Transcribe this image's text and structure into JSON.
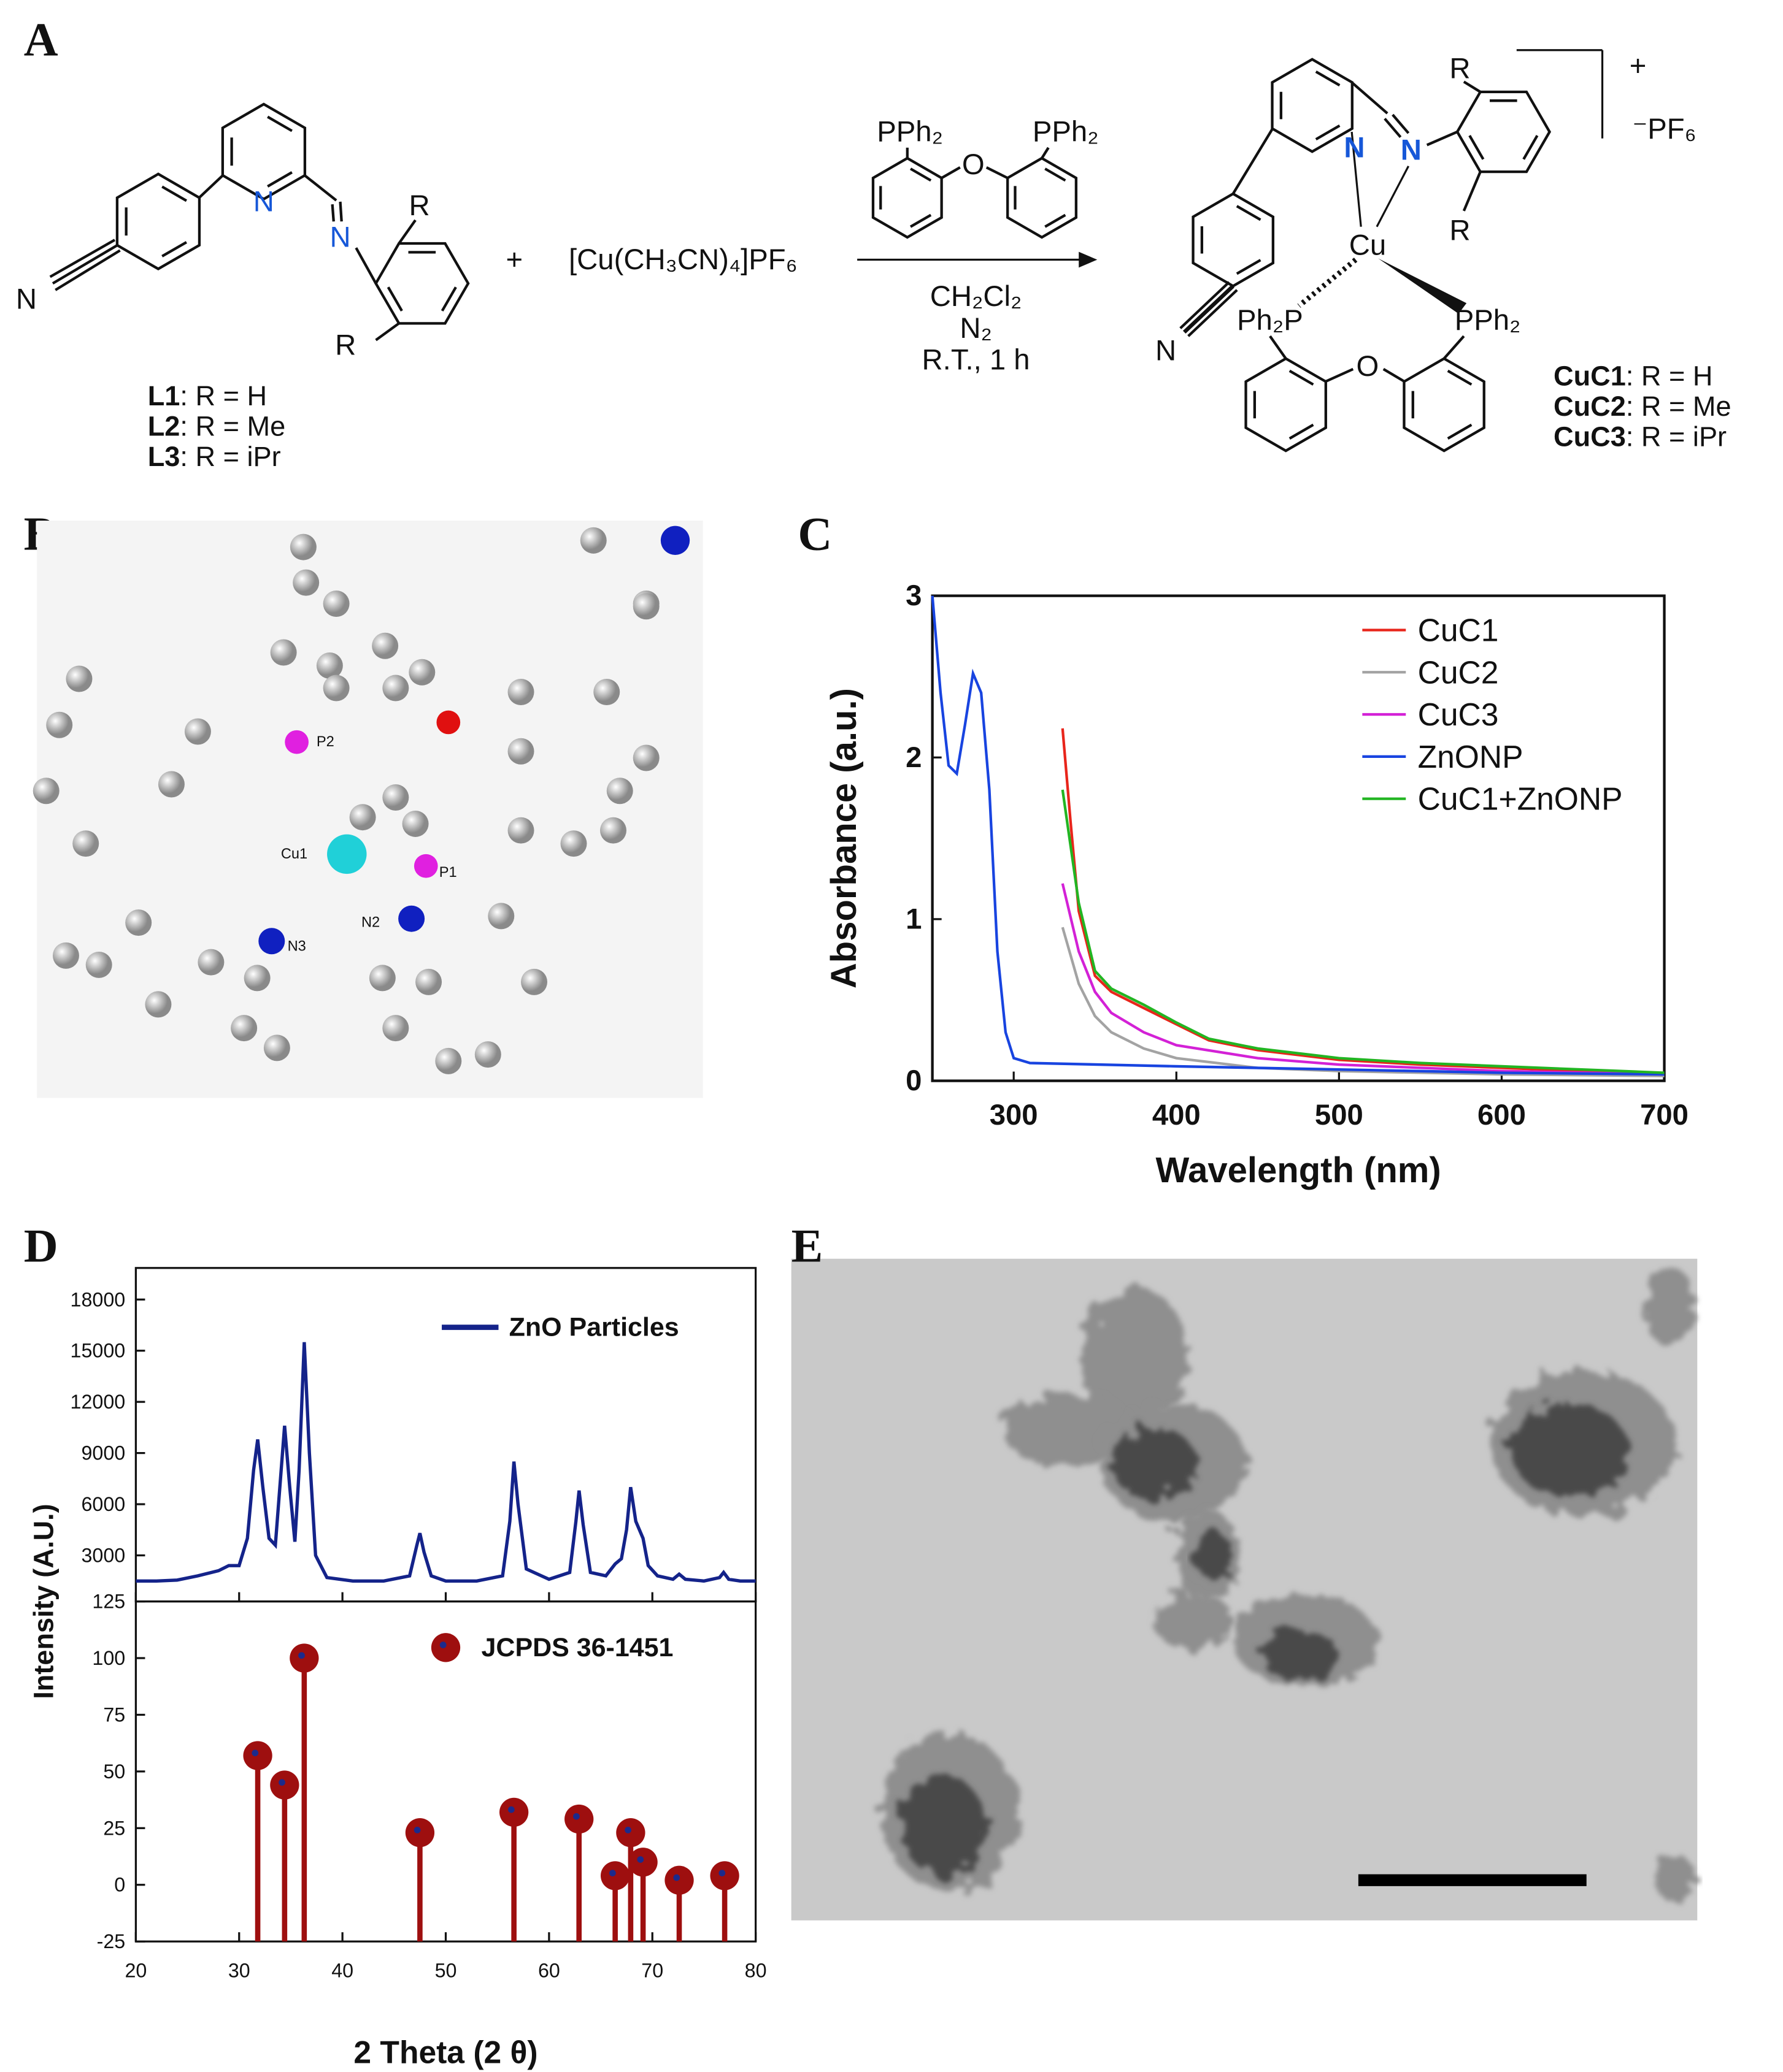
{
  "panel_labels": [
    "A",
    "B",
    "C",
    "D",
    "E"
  ],
  "scheme": {
    "ligand_atoms": [
      "N",
      "N",
      "R",
      "R",
      "N"
    ],
    "ligand_labels": [
      [
        "L1",
        ": R = H"
      ],
      [
        "L2",
        ": R = Me"
      ],
      [
        "L3",
        ": R = iPr"
      ]
    ],
    "plus": "+",
    "copper_salt": "[Cu(CH₃CN)₄]PF₆",
    "reagent_atoms": [
      "PPh₂",
      "PPh₂",
      "O"
    ],
    "conditions": [
      "CH₂Cl₂",
      "N₂",
      "R.T., 1 h"
    ],
    "product_atoms": [
      "N",
      "N",
      "Cu",
      "R",
      "R",
      "N",
      "Ph₂P",
      "PPh₂",
      "O"
    ],
    "charge": "+",
    "counterion": "⁻PF₆",
    "product_labels": [
      [
        "CuC1",
        ": R = H"
      ],
      [
        "CuC2",
        ": R = Me"
      ],
      [
        "CuC3",
        ": R = iPr"
      ]
    ]
  },
  "structure": {
    "atom_labels": [
      "P2",
      "Cu1",
      "P1",
      "N2",
      "N3"
    ]
  },
  "chart_data": [
    {
      "type": "line",
      "xlabel": "Wavelength (nm)",
      "ylabel": "Absorbance (a.u.)",
      "xlim": [
        250,
        700
      ],
      "ylim": [
        0,
        3
      ],
      "xticks": [
        300,
        400,
        500,
        600,
        700
      ],
      "yticks": [
        0,
        1,
        2,
        3
      ],
      "grid": false,
      "legend": "upper right",
      "series": [
        {
          "name": "CuC1",
          "color": "#e8251b",
          "x": [
            330,
            335,
            340,
            350,
            360,
            380,
            400,
            420,
            450,
            500,
            550,
            600,
            650,
            700
          ],
          "values": [
            2.18,
            1.6,
            1.05,
            0.65,
            0.55,
            0.45,
            0.35,
            0.25,
            0.19,
            0.13,
            0.1,
            0.08,
            0.06,
            0.04
          ]
        },
        {
          "name": "CuC2",
          "color": "#a3a3a3",
          "x": [
            330,
            340,
            350,
            360,
            380,
            400,
            450,
            500,
            600,
            700
          ],
          "values": [
            0.95,
            0.6,
            0.4,
            0.3,
            0.2,
            0.14,
            0.08,
            0.06,
            0.04,
            0.03
          ]
        },
        {
          "name": "CuC3",
          "color": "#d321d6",
          "x": [
            330,
            340,
            350,
            360,
            380,
            400,
            450,
            500,
            600,
            700
          ],
          "values": [
            1.22,
            0.8,
            0.55,
            0.42,
            0.3,
            0.22,
            0.14,
            0.1,
            0.06,
            0.04
          ]
        },
        {
          "name": "ZnONP",
          "color": "#1844e0",
          "x": [
            250,
            255,
            260,
            265,
            270,
            275,
            280,
            285,
            290,
            295,
            300,
            310,
            400,
            500,
            600,
            700
          ],
          "values": [
            3,
            2.4,
            1.95,
            1.9,
            2.2,
            2.52,
            2.4,
            1.8,
            0.8,
            0.3,
            0.14,
            0.11,
            0.09,
            0.07,
            0.05,
            0.04
          ]
        },
        {
          "name": "CuC1+ZnONP",
          "color": "#22b522",
          "x": [
            330,
            340,
            350,
            360,
            380,
            400,
            420,
            450,
            500,
            550,
            600,
            700
          ],
          "values": [
            1.8,
            1.1,
            0.68,
            0.57,
            0.47,
            0.36,
            0.26,
            0.2,
            0.14,
            0.11,
            0.09,
            0.05
          ]
        }
      ]
    },
    {
      "type": "line",
      "ylabel": "Intensity (A.U.)",
      "text_color": "#1c2a8c",
      "xlim": [
        20,
        80
      ],
      "ylim": [
        300,
        19850
      ],
      "yticks": [
        3000,
        6000,
        9000,
        12000,
        15000,
        18000
      ],
      "legend": "upper right",
      "series": [
        {
          "name": "ZnO Particles",
          "color": "#14238a",
          "x": [
            20,
            22,
            24,
            26,
            28,
            29,
            30,
            30.8,
            31.4,
            31.8,
            32.3,
            32.9,
            33.5,
            34.0,
            34.4,
            34.9,
            35.4,
            35.8,
            36.3,
            36.8,
            37.4,
            38.5,
            41,
            44,
            46.5,
            47.2,
            47.5,
            47.9,
            48.6,
            50,
            53,
            55.5,
            56.2,
            56.6,
            57.0,
            57.8,
            60,
            62.0,
            62.6,
            62.9,
            63.3,
            64.0,
            65.5,
            66.4,
            67.0,
            67.5,
            67.9,
            68.4,
            69.1,
            69.6,
            70.5,
            72,
            72.6,
            73.2,
            75,
            76.5,
            76.9,
            77.4,
            78.5,
            80
          ],
          "values": [
            1500,
            1500,
            1550,
            1800,
            2100,
            2400,
            2400,
            4000,
            8000,
            9800,
            7000,
            4000,
            3600,
            7500,
            10600,
            7000,
            3800,
            8000,
            15500,
            9000,
            3000,
            1700,
            1500,
            1500,
            1800,
            3600,
            4300,
            3200,
            1800,
            1500,
            1500,
            1800,
            5000,
            8500,
            6000,
            2200,
            1600,
            2000,
            5000,
            6800,
            4800,
            2000,
            1800,
            2500,
            2800,
            4500,
            7000,
            5000,
            4000,
            2400,
            1800,
            1600,
            1900,
            1600,
            1500,
            1700,
            2000,
            1600,
            1500,
            1500
          ]
        }
      ]
    },
    {
      "type": "stem",
      "xlabel": "2 Theta (2 θ)",
      "text_color": "#1c2a8c",
      "xlim": [
        20,
        80
      ],
      "ylim": [
        -25,
        125
      ],
      "xticks": [
        20,
        30,
        40,
        50,
        60,
        70,
        80
      ],
      "yticks": [
        -25,
        0,
        25,
        50,
        75,
        100,
        125
      ],
      "legend": "upper right",
      "series": [
        {
          "name": "JCPDS 36-1451",
          "color": "#9e0f0f",
          "marker_center_color": "#1c2a8c",
          "x": [
            31.8,
            34.4,
            36.3,
            47.5,
            56.6,
            62.9,
            66.4,
            67.9,
            69.1,
            72.6,
            77.0
          ],
          "values": [
            57,
            44,
            100,
            23,
            32,
            29,
            4,
            23,
            10,
            2,
            4
          ]
        }
      ]
    }
  ]
}
